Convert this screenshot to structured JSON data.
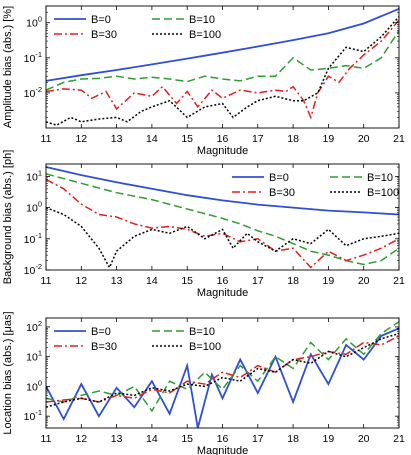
{
  "chart_data": [
    {
      "type": "line",
      "ylabel": "Amplitude bias (abs.) [%]",
      "xlabel": "Magnitude",
      "xlim": [
        11,
        21
      ],
      "ylim": [
        0.001,
        3
      ],
      "yscale": "log",
      "legend": "top-left",
      "legend_entries": [
        "B=0",
        "B=10",
        "B=30",
        "B=100"
      ],
      "x_ticks": [
        "11",
        "12",
        "13",
        "14",
        "15",
        "16",
        "17",
        "18",
        "19",
        "20",
        "21"
      ],
      "y_ticks": [
        {
          "v": 0.01,
          "t": "10",
          "e": "-2"
        },
        {
          "v": 0.1,
          "t": "10",
          "e": "-1"
        },
        {
          "v": 1,
          "t": "10",
          "e": "0"
        }
      ],
      "series": [
        {
          "name": "B=0",
          "color": "#2f4fd6",
          "dash": "",
          "x": [
            11,
            12,
            13,
            14,
            15,
            16,
            17,
            18,
            19,
            20,
            21
          ],
          "values": [
            0.022,
            0.032,
            0.045,
            0.065,
            0.095,
            0.14,
            0.21,
            0.32,
            0.5,
            0.95,
            2.5
          ]
        },
        {
          "name": "B=10",
          "color": "#2e9e2e",
          "dash": "8,4",
          "x": [
            11,
            11.5,
            12,
            12.5,
            13,
            13.5,
            14,
            14.5,
            15,
            15.5,
            16,
            16.5,
            17,
            17.5,
            18,
            18.5,
            19,
            19.5,
            20,
            20.5,
            21
          ],
          "values": [
            0.012,
            0.02,
            0.025,
            0.026,
            0.03,
            0.025,
            0.028,
            0.025,
            0.021,
            0.03,
            0.025,
            0.022,
            0.03,
            0.03,
            0.1,
            0.045,
            0.05,
            0.06,
            0.05,
            0.1,
            0.6
          ]
        },
        {
          "name": "B=30",
          "color": "#e02020",
          "dash": "8,3,2,3",
          "x": [
            11,
            11.5,
            12,
            12.3,
            12.7,
            13,
            13.5,
            14,
            14.3,
            14.7,
            15,
            15.3,
            15.7,
            16,
            16.5,
            17,
            17.5,
            17.8,
            18,
            18.3,
            18.5,
            18.7,
            19,
            19.3,
            19.6,
            20,
            20.5,
            21
          ],
          "values": [
            0.011,
            0.013,
            0.012,
            0.007,
            0.011,
            0.0035,
            0.01,
            0.008,
            0.015,
            0.005,
            0.011,
            0.004,
            0.012,
            0.007,
            0.012,
            0.01,
            0.012,
            0.011,
            0.015,
            0.006,
            0.002,
            0.01,
            0.03,
            0.02,
            0.05,
            0.12,
            0.3,
            1.2
          ]
        },
        {
          "name": "B=100",
          "color": "#000000",
          "dash": "2,2",
          "x": [
            11,
            11.3,
            11.7,
            12,
            12.5,
            13,
            13.3,
            13.7,
            14,
            14.5,
            15,
            15.5,
            16,
            16.3,
            16.7,
            17,
            17.5,
            18,
            18.3,
            18.7,
            19,
            19.5,
            20,
            20.5,
            21
          ],
          "values": [
            0.0015,
            0.0012,
            0.002,
            0.0015,
            0.0018,
            0.002,
            0.0015,
            0.003,
            0.004,
            0.006,
            0.002,
            0.004,
            0.005,
            0.002,
            0.004,
            0.006,
            0.008,
            0.006,
            0.006,
            0.01,
            0.05,
            0.2,
            0.15,
            0.4,
            1.5
          ]
        }
      ]
    },
    {
      "type": "line",
      "ylabel": "Background bias (abs.) [ph]",
      "xlabel": "Magnitude",
      "xlim": [
        11,
        21
      ],
      "ylim": [
        0.01,
        25
      ],
      "yscale": "log",
      "legend": "top-right",
      "legend_entries": [
        "B=0",
        "B=10",
        "B=30",
        "B=100"
      ],
      "x_ticks": [
        "11",
        "12",
        "13",
        "14",
        "15",
        "16",
        "17",
        "18",
        "19",
        "20",
        "21"
      ],
      "y_ticks": [
        {
          "v": 0.01,
          "t": "10",
          "e": "-2"
        },
        {
          "v": 0.1,
          "t": "10",
          "e": "-1"
        },
        {
          "v": 1,
          "t": "10",
          "e": "0"
        },
        {
          "v": 10,
          "t": "10",
          "e": "1"
        }
      ],
      "series": [
        {
          "name": "B=0",
          "color": "#2f4fd6",
          "dash": "",
          "x": [
            11,
            12,
            13,
            14,
            15,
            16,
            17,
            18,
            19,
            20,
            21
          ],
          "values": [
            20,
            11,
            6.5,
            4,
            2.5,
            1.7,
            1.25,
            1.0,
            0.8,
            0.7,
            0.6
          ]
        },
        {
          "name": "B=10",
          "color": "#2e9e2e",
          "dash": "8,4",
          "x": [
            11,
            12,
            13,
            14,
            15,
            16,
            16.5,
            17,
            17.5,
            18,
            18.5,
            19,
            19.5,
            20,
            20.5,
            21
          ],
          "values": [
            12,
            6,
            3,
            1.8,
            0.9,
            0.45,
            0.3,
            0.18,
            0.12,
            0.07,
            0.04,
            0.03,
            0.02,
            0.015,
            0.02,
            0.05
          ]
        },
        {
          "name": "B=30",
          "color": "#e02020",
          "dash": "8,3,2,3",
          "x": [
            11,
            11.5,
            12,
            12.5,
            13,
            13.5,
            14,
            14.5,
            15,
            15.5,
            16,
            16.5,
            17,
            17.5,
            18,
            18.5,
            19,
            19.5,
            20,
            20.5,
            21
          ],
          "values": [
            8,
            4,
            1.3,
            0.6,
            0.5,
            0.3,
            0.22,
            0.25,
            0.2,
            0.12,
            0.15,
            0.08,
            0.1,
            0.04,
            0.05,
            0.012,
            0.04,
            0.02,
            0.03,
            0.05,
            0.1
          ]
        },
        {
          "name": "B=100",
          "color": "#000000",
          "dash": "2,2",
          "x": [
            11,
            11.5,
            12,
            12.5,
            12.8,
            13,
            13.5,
            14,
            14.5,
            15,
            15.5,
            16,
            16.3,
            16.7,
            17,
            17.5,
            18,
            18.5,
            19,
            19.5,
            20,
            20.5,
            21
          ],
          "values": [
            1.0,
            0.6,
            0.25,
            0.05,
            0.012,
            0.04,
            0.12,
            0.2,
            0.15,
            0.25,
            0.1,
            0.2,
            0.05,
            0.15,
            0.08,
            0.04,
            0.1,
            0.07,
            0.2,
            0.06,
            0.1,
            0.12,
            0.15
          ]
        }
      ]
    },
    {
      "type": "line",
      "ylabel": "Location bias (abs.) [μas]",
      "xlabel": "Magnitude",
      "xlim": [
        11,
        21
      ],
      "ylim": [
        0.04,
        200
      ],
      "yscale": "log",
      "legend": "top-left",
      "legend_entries": [
        "B=0",
        "B=10",
        "B=30",
        "B=100"
      ],
      "x_ticks": [
        "11",
        "12",
        "13",
        "14",
        "15",
        "16",
        "17",
        "18",
        "19",
        "20",
        "21"
      ],
      "y_ticks": [
        {
          "v": 0.1,
          "t": "10",
          "e": "-1"
        },
        {
          "v": 1,
          "t": "10",
          "e": "0"
        },
        {
          "v": 10,
          "t": "10",
          "e": "1"
        },
        {
          "v": 100,
          "t": "10",
          "e": "2"
        }
      ],
      "series": [
        {
          "name": "B=0",
          "color": "#2f4fd6",
          "dash": "",
          "x": [
            11,
            11.5,
            12,
            12.5,
            13,
            13.5,
            14,
            14.5,
            15,
            15.3,
            15.7,
            16,
            16.5,
            17,
            17.5,
            18,
            18.5,
            19,
            19.5,
            20,
            20.5,
            21
          ],
          "values": [
            1.0,
            0.08,
            1.2,
            0.1,
            0.9,
            0.2,
            1.5,
            0.12,
            5,
            0.04,
            2.5,
            0.4,
            8,
            0.6,
            10,
            0.3,
            12,
            1.2,
            25,
            8,
            50,
            90
          ]
        },
        {
          "name": "B=10",
          "color": "#2e9e2e",
          "dash": "8,4",
          "x": [
            11,
            11.5,
            12,
            12.5,
            13,
            13.5,
            14,
            14.5,
            15,
            15.5,
            16,
            16.5,
            17,
            17.5,
            18,
            18.5,
            19,
            19.5,
            20,
            20.5,
            21
          ],
          "values": [
            0.4,
            0.3,
            0.5,
            0.7,
            0.5,
            1.0,
            0.15,
            1.5,
            0.8,
            3,
            0.8,
            5,
            1.5,
            10,
            4,
            30,
            8,
            40,
            12,
            60,
            150
          ]
        },
        {
          "name": "B=30",
          "color": "#e02020",
          "dash": "8,3,2,3",
          "x": [
            11,
            11.5,
            12,
            12.5,
            13,
            13.5,
            14,
            14.5,
            15,
            15.5,
            16,
            16.5,
            17,
            17.5,
            18,
            18.5,
            19,
            19.5,
            20,
            20.5,
            21
          ],
          "values": [
            0.3,
            0.35,
            0.4,
            0.3,
            0.5,
            0.4,
            0.8,
            0.6,
            1.5,
            1.2,
            3,
            2,
            5,
            3,
            8,
            10,
            15,
            12,
            30,
            25,
            50
          ]
        },
        {
          "name": "B=100",
          "color": "#000000",
          "dash": "2,2",
          "x": [
            11,
            11.5,
            12,
            12.5,
            13,
            13.5,
            14,
            14.5,
            15,
            15.5,
            16,
            16.5,
            17,
            17.5,
            18,
            18.5,
            19,
            19.5,
            20,
            20.5,
            21
          ],
          "values": [
            0.2,
            0.3,
            0.4,
            0.3,
            0.6,
            0.5,
            0.9,
            0.7,
            1.2,
            1.0,
            2,
            1.5,
            4,
            3,
            8,
            6,
            15,
            10,
            20,
            40,
            60
          ]
        }
      ]
    }
  ]
}
